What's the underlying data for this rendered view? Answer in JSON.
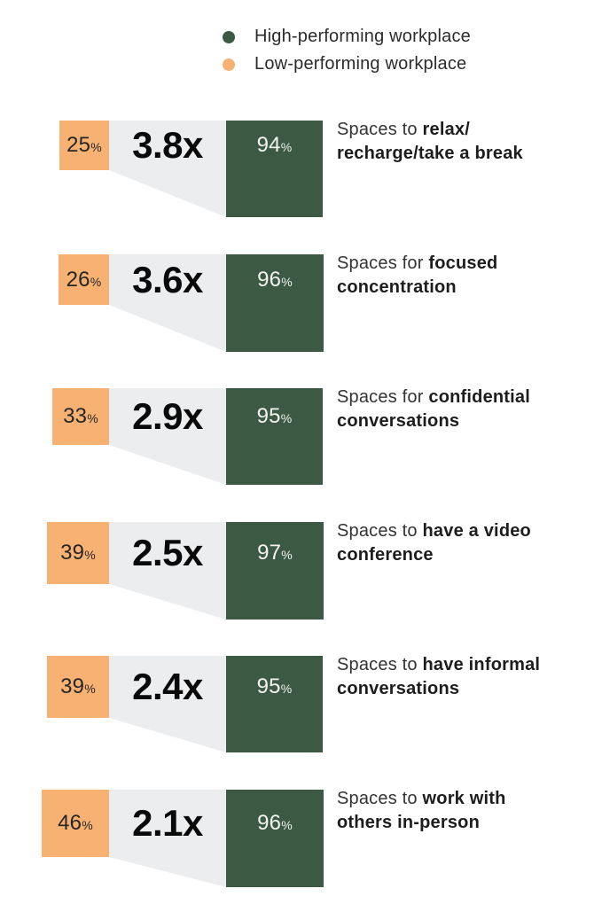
{
  "legend": {
    "items": [
      {
        "key": "high",
        "label": "High-performing workplace",
        "color": "#3b5943"
      },
      {
        "key": "low",
        "label": "Low-performing workplace",
        "color": "#f6b173"
      }
    ]
  },
  "unit": "%",
  "colors": {
    "high_square": "#3b5943",
    "low_square": "#f6b173",
    "wedge": "#ecedef",
    "ratio_text": "#0a0a0a",
    "low_pct_text": "#262626",
    "high_pct_text": "#f4f3ee",
    "label_text": "#1d1d1d"
  },
  "chart_data": {
    "type": "proportional-area-squares",
    "description": "Paired squares sized by percentage; grey funnel between them carries the ratio multiplier",
    "categories": [
      "Spaces to relax/recharge/take a break",
      "Spaces for focused concentration",
      "Spaces for confidential conversations",
      "Spaces to have a video conference",
      "Spaces to have informal conversations",
      "Spaces to work with others in-person"
    ],
    "series": [
      {
        "name": "Low-performing workplace",
        "color": "#f6b173",
        "values": [
          25,
          26,
          33,
          39,
          39,
          46
        ]
      },
      {
        "name": "High-performing workplace",
        "color": "#3b5943",
        "values": [
          94,
          96,
          95,
          97,
          95,
          96
        ]
      }
    ],
    "ratio_labels": [
      "3.8x",
      "3.6x",
      "2.9x",
      "2.5x",
      "2.4x",
      "2.1x"
    ],
    "value_suffix": "%",
    "legend_position": "top"
  },
  "rows": [
    {
      "low": "25",
      "ratio": "3.8x",
      "high": "94",
      "label_prefix": "Spaces to ",
      "label_bold": "relax/\nrecharge/take a break",
      "low_value": 25,
      "high_value": 94
    },
    {
      "low": "26",
      "ratio": "3.6x",
      "high": "96",
      "label_prefix": "Spaces for ",
      "label_bold": "focused\nconcentration",
      "low_value": 26,
      "high_value": 96
    },
    {
      "low": "33",
      "ratio": "2.9x",
      "high": "95",
      "label_prefix": "Spaces for ",
      "label_bold": "confidential\nconversations",
      "low_value": 33,
      "high_value": 95
    },
    {
      "low": "39",
      "ratio": "2.5x",
      "high": "97",
      "label_prefix": "Spaces to ",
      "label_bold": "have a video\nconference",
      "low_value": 39,
      "high_value": 97
    },
    {
      "low": "39",
      "ratio": "2.4x",
      "high": "95",
      "label_prefix": "Spaces to ",
      "label_bold": "have informal\nconversations",
      "low_value": 39,
      "high_value": 95
    },
    {
      "low": "46",
      "ratio": "2.1x",
      "high": "96",
      "label_prefix": "Spaces to ",
      "label_bold": "work with\nothers in-person",
      "low_value": 46,
      "high_value": 96
    }
  ]
}
